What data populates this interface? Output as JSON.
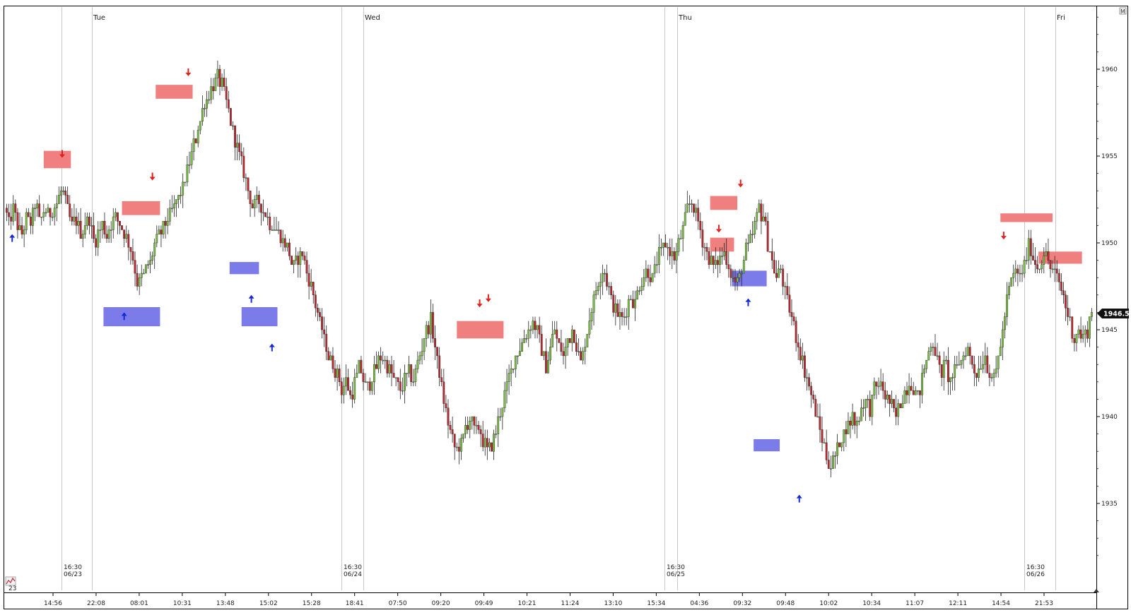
{
  "colors": {
    "up": "#7cc242",
    "down": "#c1272d",
    "wick": "#222222",
    "supply_zone": "#f08080",
    "demand_zone": "#7b7bea",
    "up_arrow": "#1428d8",
    "down_arrow": "#e0201a",
    "grid": "#c8c8c8",
    "price_tag": "#111111"
  },
  "toolbar": {
    "corner_label": "23",
    "icon_name": "chart-icon",
    "scale_icon_label": "M"
  },
  "day_labels": [
    {
      "label": "Tue",
      "minute": 150
    },
    {
      "label": "Wed",
      "minute": 1590
    },
    {
      "label": "Thu",
      "minute": 3030
    },
    {
      "label": "Fri",
      "minute": 4470
    }
  ],
  "session_markers": [
    {
      "time": "16:30",
      "date": "06/23",
      "minute": 0
    },
    {
      "time": "16:30",
      "date": "06/24",
      "minute": 1440
    },
    {
      "time": "16:30",
      "date": "06/25",
      "minute": 2880
    },
    {
      "time": "16:30",
      "date": "06/26",
      "minute": 4320
    }
  ],
  "time_axis": [
    "14:56",
    "22:08",
    "08:01",
    "10:31",
    "13:48",
    "15:02",
    "15:28",
    "18:41",
    "07:50",
    "09:20",
    "09:49",
    "10:21",
    "11:24",
    "13:10",
    "15:34",
    "04:36",
    "09:32",
    "09:48",
    "10:02",
    "10:34",
    "11:07",
    "12:11",
    "14:54",
    "21:53"
  ],
  "price_axis": [
    1935,
    1940,
    1945,
    1950,
    1955,
    1960
  ],
  "last_price": "1946.50",
  "chart_data": {
    "type": "candlestick",
    "title": "",
    "ylim": [
      1930.5,
      1963.5
    ],
    "y_ticks": [
      1935,
      1940,
      1945,
      1950,
      1955,
      1960
    ],
    "x_ticks": [
      "14:56",
      "22:08",
      "08:01",
      "10:31",
      "13:48",
      "15:02",
      "15:28",
      "18:41",
      "07:50",
      "09:20",
      "09:49",
      "10:21",
      "11:24",
      "13:10",
      "15:34",
      "04:36",
      "09:32",
      "09:48",
      "10:02",
      "10:34",
      "11:07",
      "12:11",
      "14:54",
      "21:53"
    ],
    "bar_count": 500,
    "grid": false,
    "last_price": 1946.5,
    "path": [
      [
        0,
        1952
      ],
      [
        4,
        1951
      ],
      [
        8,
        1952
      ],
      [
        12,
        1951
      ],
      [
        16,
        1950.5
      ],
      [
        20,
        1951.5
      ],
      [
        24,
        1951
      ],
      [
        28,
        1952.5
      ],
      [
        32,
        1951
      ],
      [
        36,
        1952
      ],
      [
        40,
        1951.5
      ],
      [
        44,
        1952
      ],
      [
        48,
        1952.5
      ],
      [
        52,
        1953
      ],
      [
        56,
        1952
      ],
      [
        60,
        1951
      ],
      [
        64,
        1951.5
      ],
      [
        68,
        1950.5
      ],
      [
        72,
        1951
      ],
      [
        76,
        1951.5
      ],
      [
        80,
        1950
      ],
      [
        84,
        1950.5
      ],
      [
        88,
        1951
      ],
      [
        92,
        1950.5
      ],
      [
        96,
        1951
      ],
      [
        100,
        1951.5
      ],
      [
        104,
        1951
      ],
      [
        108,
        1950.5
      ],
      [
        112,
        1950
      ],
      [
        116,
        1949
      ],
      [
        120,
        1947.5
      ],
      [
        124,
        1948
      ],
      [
        128,
        1948.5
      ],
      [
        132,
        1949
      ],
      [
        136,
        1950
      ],
      [
        140,
        1950.5
      ],
      [
        144,
        1951
      ],
      [
        148,
        1951.5
      ],
      [
        152,
        1952
      ],
      [
        156,
        1952.5
      ],
      [
        160,
        1953
      ],
      [
        164,
        1954
      ],
      [
        168,
        1955
      ],
      [
        172,
        1956
      ],
      [
        176,
        1957
      ],
      [
        180,
        1958
      ],
      [
        184,
        1958.5
      ],
      [
        188,
        1959.2
      ],
      [
        192,
        1959.5
      ],
      [
        196,
        1959
      ],
      [
        200,
        1958
      ],
      [
        204,
        1957
      ],
      [
        208,
        1956
      ],
      [
        212,
        1955
      ],
      [
        216,
        1954
      ],
      [
        220,
        1953
      ],
      [
        224,
        1952
      ],
      [
        228,
        1952.5
      ],
      [
        232,
        1952
      ],
      [
        236,
        1951.5
      ],
      [
        240,
        1951
      ],
      [
        244,
        1951
      ],
      [
        248,
        1950.5
      ],
      [
        252,
        1950
      ],
      [
        256,
        1949.5
      ],
      [
        260,
        1948.5
      ],
      [
        264,
        1949
      ],
      [
        268,
        1949.5
      ],
      [
        272,
        1948.5
      ],
      [
        276,
        1947.5
      ],
      [
        280,
        1946.5
      ],
      [
        284,
        1945.5
      ],
      [
        288,
        1944.5
      ],
      [
        292,
        1943.5
      ],
      [
        296,
        1943
      ],
      [
        300,
        1942.5
      ],
      [
        304,
        1941.5
      ],
      [
        308,
        1942
      ],
      [
        312,
        1941
      ],
      [
        316,
        1942
      ],
      [
        320,
        1943
      ],
      [
        324,
        1942
      ],
      [
        328,
        1941.5
      ],
      [
        332,
        1942.5
      ],
      [
        336,
        1943
      ],
      [
        340,
        1943.5
      ],
      [
        344,
        1943
      ],
      [
        348,
        1942.5
      ],
      [
        352,
        1942
      ],
      [
        356,
        1941.5
      ],
      [
        360,
        1942
      ],
      [
        364,
        1942.5
      ],
      [
        368,
        1942
      ],
      [
        372,
        1943
      ],
      [
        376,
        1944
      ],
      [
        380,
        1945
      ],
      [
        384,
        1945.5
      ],
      [
        388,
        1944
      ],
      [
        392,
        1942.5
      ],
      [
        396,
        1941
      ],
      [
        400,
        1939.5
      ],
      [
        404,
        1938.5
      ],
      [
        408,
        1938
      ],
      [
        412,
        1938.5
      ],
      [
        416,
        1939.5
      ],
      [
        420,
        1940
      ],
      [
        424,
        1939
      ],
      [
        428,
        1939.5
      ],
      [
        432,
        1938.5
      ],
      [
        436,
        1938
      ],
      [
        440,
        1938.5
      ],
      [
        444,
        1939.5
      ],
      [
        448,
        1940.5
      ],
      [
        452,
        1941.5
      ],
      [
        456,
        1942.5
      ],
      [
        460,
        1943.5
      ],
      [
        464,
        1944
      ],
      [
        468,
        1944.5
      ],
      [
        472,
        1945
      ],
      [
        476,
        1945.5
      ],
      [
        480,
        1945
      ],
      [
        484,
        1944
      ],
      [
        488,
        1943
      ],
      [
        492,
        1944
      ],
      [
        496,
        1945
      ],
      [
        500,
        1944
      ],
      [
        504,
        1943.5
      ],
      [
        508,
        1944.5
      ],
      [
        512,
        1945
      ],
      [
        516,
        1944
      ],
      [
        520,
        1943
      ],
      [
        524,
        1944.5
      ],
      [
        528,
        1946
      ],
      [
        532,
        1947
      ],
      [
        536,
        1948
      ],
      [
        540,
        1948.5
      ],
      [
        544,
        1947.5
      ],
      [
        548,
        1946.5
      ],
      [
        552,
        1946
      ],
      [
        556,
        1945.5
      ],
      [
        560,
        1946
      ],
      [
        564,
        1947
      ],
      [
        568,
        1946.5
      ],
      [
        572,
        1947.5
      ],
      [
        576,
        1948
      ],
      [
        580,
        1948.5
      ],
      [
        584,
        1948
      ],
      [
        588,
        1949
      ],
      [
        592,
        1949.5
      ],
      [
        596,
        1950
      ],
      [
        600,
        1949.5
      ],
      [
        604,
        1949
      ],
      [
        608,
        1950
      ],
      [
        612,
        1951
      ],
      [
        616,
        1952
      ],
      [
        620,
        1952.5
      ],
      [
        624,
        1951.5
      ],
      [
        628,
        1950.5
      ],
      [
        632,
        1949.5
      ],
      [
        636,
        1949
      ],
      [
        640,
        1948.5
      ],
      [
        644,
        1949
      ],
      [
        648,
        1949.5
      ],
      [
        652,
        1949
      ],
      [
        656,
        1948
      ],
      [
        660,
        1947.5
      ],
      [
        664,
        1948.5
      ],
      [
        668,
        1949.5
      ],
      [
        672,
        1950
      ],
      [
        676,
        1951
      ],
      [
        680,
        1952
      ],
      [
        684,
        1951.5
      ],
      [
        688,
        1950
      ],
      [
        692,
        1949
      ],
      [
        696,
        1948
      ],
      [
        700,
        1948.5
      ],
      [
        704,
        1947
      ],
      [
        708,
        1946
      ],
      [
        712,
        1945
      ],
      [
        716,
        1944
      ],
      [
        720,
        1943
      ],
      [
        724,
        1942
      ],
      [
        728,
        1941
      ],
      [
        732,
        1940
      ],
      [
        736,
        1939
      ],
      [
        740,
        1938
      ],
      [
        744,
        1937
      ],
      [
        748,
        1937.5
      ],
      [
        752,
        1938.5
      ],
      [
        756,
        1939
      ],
      [
        760,
        1939.5
      ],
      [
        764,
        1940
      ],
      [
        768,
        1939.5
      ],
      [
        772,
        1940.5
      ],
      [
        776,
        1941
      ],
      [
        780,
        1940.5
      ],
      [
        784,
        1941.5
      ],
      [
        788,
        1942
      ],
      [
        792,
        1941.5
      ],
      [
        796,
        1941
      ],
      [
        800,
        1940.5
      ],
      [
        804,
        1940
      ],
      [
        808,
        1941
      ],
      [
        812,
        1941.5
      ],
      [
        816,
        1942
      ],
      [
        820,
        1941.5
      ],
      [
        824,
        1941
      ],
      [
        828,
        1942.5
      ],
      [
        832,
        1943.5
      ],
      [
        836,
        1944.5
      ],
      [
        840,
        1943.5
      ],
      [
        844,
        1942.5
      ],
      [
        848,
        1943
      ],
      [
        852,
        1942
      ],
      [
        856,
        1942.5
      ],
      [
        860,
        1943
      ],
      [
        864,
        1943.5
      ],
      [
        868,
        1944
      ],
      [
        872,
        1943
      ],
      [
        876,
        1942.5
      ],
      [
        880,
        1943
      ],
      [
        884,
        1943.5
      ],
      [
        888,
        1942.5
      ],
      [
        892,
        1942
      ],
      [
        896,
        1943.5
      ],
      [
        900,
        1945
      ],
      [
        904,
        1947
      ],
      [
        908,
        1948
      ],
      [
        912,
        1948.5
      ],
      [
        916,
        1948
      ],
      [
        920,
        1949
      ],
      [
        924,
        1950
      ],
      [
        928,
        1949
      ],
      [
        932,
        1948.5
      ],
      [
        936,
        1949.5
      ],
      [
        940,
        1949
      ],
      [
        944,
        1948.5
      ],
      [
        948,
        1948
      ],
      [
        952,
        1947.5
      ],
      [
        956,
        1946.5
      ],
      [
        960,
        1945.5
      ],
      [
        964,
        1944.5
      ],
      [
        968,
        1945
      ],
      [
        972,
        1944.5
      ],
      [
        976,
        1945
      ],
      [
        980,
        1946
      ]
    ],
    "zones": [
      {
        "kind": "supply",
        "from": 0.035,
        "to": 0.06,
        "top": 1955.3,
        "bottom": 1954.3
      },
      {
        "kind": "supply",
        "from": 0.138,
        "to": 0.172,
        "top": 1959.1,
        "bottom": 1958.3
      },
      {
        "kind": "supply",
        "from": 0.107,
        "to": 0.142,
        "top": 1952.4,
        "bottom": 1951.6
      },
      {
        "kind": "demand",
        "from": 0.09,
        "to": 0.142,
        "top": 1946.3,
        "bottom": 1945.2
      },
      {
        "kind": "demand",
        "from": 0.206,
        "to": 0.233,
        "top": 1948.9,
        "bottom": 1948.2
      },
      {
        "kind": "demand",
        "from": 0.217,
        "to": 0.25,
        "top": 1946.3,
        "bottom": 1945.2
      },
      {
        "kind": "supply",
        "from": 0.415,
        "to": 0.458,
        "top": 1945.5,
        "bottom": 1944.5
      },
      {
        "kind": "supply",
        "from": 0.648,
        "to": 0.673,
        "top": 1952.7,
        "bottom": 1951.9
      },
      {
        "kind": "supply",
        "from": 0.648,
        "to": 0.67,
        "top": 1950.3,
        "bottom": 1949.5
      },
      {
        "kind": "demand",
        "from": 0.668,
        "to": 0.7,
        "top": 1948.4,
        "bottom": 1947.5
      },
      {
        "kind": "demand",
        "from": 0.688,
        "to": 0.712,
        "top": 1938.7,
        "bottom": 1938
      },
      {
        "kind": "supply",
        "from": 0.915,
        "to": 0.963,
        "top": 1951.7,
        "bottom": 1951.2
      },
      {
        "kind": "supply",
        "from": 0.95,
        "to": 0.99,
        "top": 1949.5,
        "bottom": 1948.8
      }
    ],
    "arrows": [
      {
        "kind": "up",
        "at": 0.006,
        "price": 1950.3
      },
      {
        "kind": "down",
        "at": 0.052,
        "price": 1955.1
      },
      {
        "kind": "up",
        "at": 0.109,
        "price": 1945.8
      },
      {
        "kind": "down",
        "at": 0.135,
        "price": 1953.8
      },
      {
        "kind": "down",
        "at": 0.168,
        "price": 1959.8
      },
      {
        "kind": "up",
        "at": 0.226,
        "price": 1946.8
      },
      {
        "kind": "up",
        "at": 0.245,
        "price": 1944
      },
      {
        "kind": "down",
        "at": 0.436,
        "price": 1946.5
      },
      {
        "kind": "down",
        "at": 0.444,
        "price": 1946.8
      },
      {
        "kind": "down",
        "at": 0.656,
        "price": 1950.8
      },
      {
        "kind": "down",
        "at": 0.676,
        "price": 1953.4
      },
      {
        "kind": "up",
        "at": 0.683,
        "price": 1946.6
      },
      {
        "kind": "up",
        "at": 0.73,
        "price": 1935.3
      },
      {
        "kind": "down",
        "at": 0.918,
        "price": 1950.4
      }
    ]
  }
}
